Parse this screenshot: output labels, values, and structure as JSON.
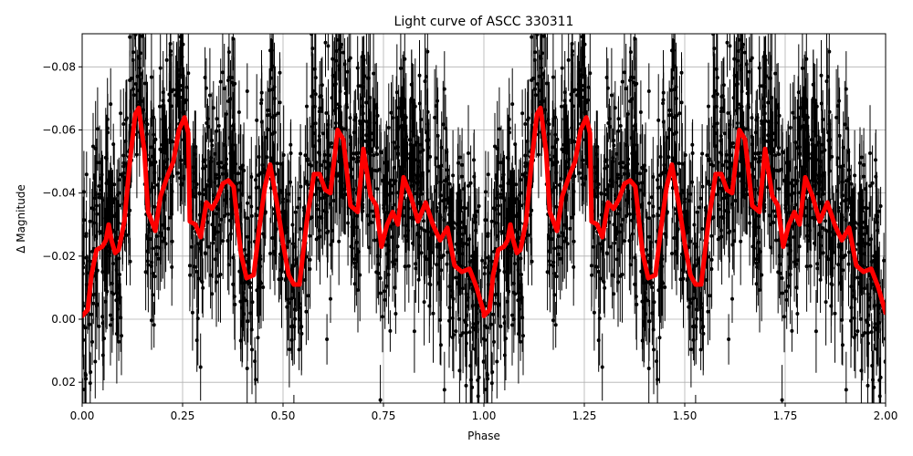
{
  "chart_data": {
    "type": "line",
    "title": "Light curve of ASCC 330311",
    "xlabel": "Phase",
    "ylabel": "Δ Magnitude",
    "xlim": [
      0.0,
      2.0
    ],
    "ylim": [
      0.0266,
      -0.0905
    ],
    "y_inverted": true,
    "grid": true,
    "legend": null,
    "xticks": [
      "0.00",
      "0.25",
      "0.50",
      "0.75",
      "1.00",
      "1.25",
      "1.50",
      "1.75",
      "2.00"
    ],
    "xtick_values": [
      0.0,
      0.25,
      0.5,
      0.75,
      1.0,
      1.25,
      1.5,
      1.75,
      2.0
    ],
    "yticks": [
      "−0.08",
      "−0.06",
      "−0.04",
      "−0.02",
      "0.00",
      "0.02"
    ],
    "ytick_values": [
      -0.08,
      -0.06,
      -0.04,
      -0.02,
      0.0,
      0.02
    ],
    "series": [
      {
        "name": "observations",
        "style": "black points with error bars",
        "color": "#000000",
        "description": "Dense phase-folded photometry, scatter roughly ±0.03 mag around model, error bars ~0.01–0.02 mag",
        "envelope_phase": [
          0.0,
          0.1,
          0.14,
          0.2,
          0.25,
          0.3,
          0.4,
          0.45,
          0.5,
          0.55,
          0.65,
          0.7,
          0.8,
          0.9,
          1.0
        ],
        "envelope_upper": [
          -0.06,
          -0.07,
          -0.09,
          -0.08,
          -0.09,
          -0.07,
          -0.075,
          -0.085,
          -0.075,
          -0.09,
          -0.09,
          -0.085,
          -0.08,
          -0.07,
          -0.06
        ],
        "envelope_lower": [
          0.025,
          0.02,
          0.0,
          0.005,
          0.0,
          0.01,
          0.02,
          0.02,
          0.02,
          0.025,
          0.01,
          0.015,
          0.01,
          0.02,
          0.025
        ]
      },
      {
        "name": "smoothed model",
        "style": "thick red line",
        "color": "#ff0000",
        "x": [
          0.0,
          0.014,
          0.023,
          0.036,
          0.05,
          0.059,
          0.066,
          0.073,
          0.082,
          0.091,
          0.105,
          0.118,
          0.132,
          0.141,
          0.155,
          0.164,
          0.182,
          0.195,
          0.214,
          0.227,
          0.241,
          0.255,
          0.264,
          0.268,
          0.282,
          0.295,
          0.309,
          0.323,
          0.336,
          0.35,
          0.364,
          0.377,
          0.395,
          0.409,
          0.427,
          0.441,
          0.455,
          0.468,
          0.486,
          0.5,
          0.514,
          0.527,
          0.541,
          0.559,
          0.577,
          0.591,
          0.605,
          0.618,
          0.636,
          0.65,
          0.668,
          0.686,
          0.7,
          0.718,
          0.732,
          0.745,
          0.759,
          0.773,
          0.786,
          0.8,
          0.818,
          0.836,
          0.855,
          0.873,
          0.891,
          0.909,
          0.927,
          0.945,
          0.964,
          0.982,
          1.0
        ],
        "values": [
          -0.001,
          -0.003,
          -0.014,
          -0.022,
          -0.023,
          -0.025,
          -0.03,
          -0.025,
          -0.021,
          -0.022,
          -0.031,
          -0.049,
          -0.065,
          -0.067,
          -0.053,
          -0.034,
          -0.028,
          -0.039,
          -0.046,
          -0.05,
          -0.06,
          -0.064,
          -0.059,
          -0.031,
          -0.03,
          -0.026,
          -0.037,
          -0.035,
          -0.038,
          -0.043,
          -0.044,
          -0.042,
          -0.021,
          -0.013,
          -0.014,
          -0.029,
          -0.042,
          -0.049,
          -0.036,
          -0.024,
          -0.014,
          -0.011,
          -0.011,
          -0.031,
          -0.046,
          -0.046,
          -0.041,
          -0.04,
          -0.06,
          -0.057,
          -0.036,
          -0.034,
          -0.054,
          -0.039,
          -0.036,
          -0.023,
          -0.03,
          -0.034,
          -0.03,
          -0.045,
          -0.039,
          -0.031,
          -0.037,
          -0.03,
          -0.025,
          -0.029,
          -0.017,
          -0.015,
          -0.016,
          -0.01,
          -0.002
        ],
        "periodic": true,
        "period": 1.0
      }
    ]
  }
}
